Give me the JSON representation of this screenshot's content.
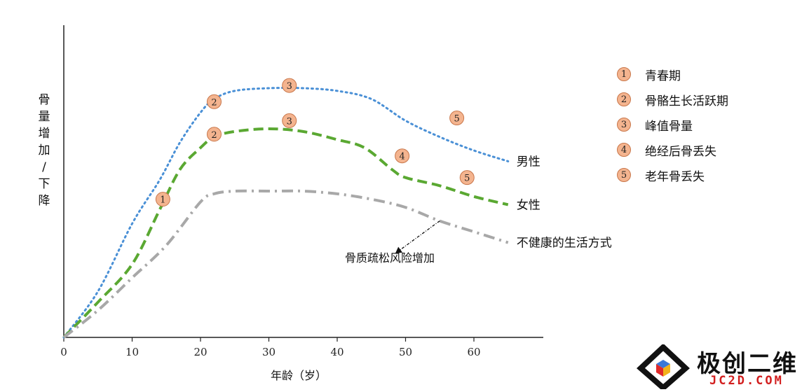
{
  "chart_data": {
    "type": "line",
    "ylabel": "骨量增加/下降",
    "xlabel": "年龄（岁）",
    "xlim": [
      0,
      70
    ],
    "xticks": [
      0,
      10,
      20,
      30,
      40,
      50,
      60
    ],
    "ylim": [
      0,
      100
    ],
    "grid": false,
    "series": [
      {
        "name": "男性",
        "style": "dotted",
        "color": "#4a90d6",
        "x": [
          0,
          5,
          10,
          14,
          17,
          20,
          22,
          25,
          30,
          35,
          40,
          45,
          50,
          55,
          60,
          65
        ],
        "y": [
          0,
          17,
          42,
          58,
          72,
          83,
          88,
          91,
          92,
          92,
          91,
          88,
          80,
          74,
          69,
          65
        ]
      },
      {
        "name": "女性",
        "style": "dashed",
        "color": "#5aa832",
        "x": [
          0,
          5,
          10,
          14,
          17,
          20,
          22,
          25,
          30,
          35,
          40,
          44,
          48,
          50,
          55,
          60,
          65
        ],
        "y": [
          0,
          13,
          27,
          47,
          62,
          70,
          74,
          76,
          77,
          76,
          73,
          70,
          62,
          59,
          56,
          52,
          49
        ]
      },
      {
        "name": "不健康的生活方式",
        "style": "dashdot",
        "color": "#a8a8a8",
        "x": [
          0,
          5,
          10,
          15,
          20,
          22,
          25,
          30,
          35,
          40,
          45,
          50,
          55,
          60,
          65
        ],
        "y": [
          0,
          10,
          22,
          34,
          50,
          53,
          54,
          54,
          54,
          53,
          51,
          48,
          43,
          39,
          35
        ]
      }
    ],
    "stage_markers": [
      {
        "label": "1",
        "series": "女性",
        "x": 14.5,
        "y": 51
      },
      {
        "label": "2",
        "series": "男性",
        "x": 22,
        "y": 87
      },
      {
        "label": "3",
        "series": "男性",
        "x": 33,
        "y": 93
      },
      {
        "label": "5",
        "series": "男性",
        "x": 57.5,
        "y": 81
      },
      {
        "label": "2",
        "series": "女性",
        "x": 22,
        "y": 75
      },
      {
        "label": "3",
        "series": "女性",
        "x": 33,
        "y": 80
      },
      {
        "label": "4",
        "series": "女性",
        "x": 49.5,
        "y": 67
      },
      {
        "label": "5",
        "series": "女性",
        "x": 59,
        "y": 59
      }
    ],
    "annotation": {
      "text": "骨质疏松风险增加",
      "arrow_from": {
        "x": 55,
        "y": 43
      },
      "arrow_to": {
        "x": 48.5,
        "y": 31
      }
    }
  },
  "legend": {
    "items": [
      {
        "num": "1",
        "label": "青春期"
      },
      {
        "num": "2",
        "label": "骨骼生长活跃期"
      },
      {
        "num": "3",
        "label": "峰值骨量"
      },
      {
        "num": "4",
        "label": "绝经后骨丢失"
      },
      {
        "num": "5",
        "label": "老年骨丢失"
      }
    ]
  },
  "logo": {
    "main": "极创二维",
    "sub": "JC2D.COM",
    "icon": "diamond-cube-icon"
  }
}
